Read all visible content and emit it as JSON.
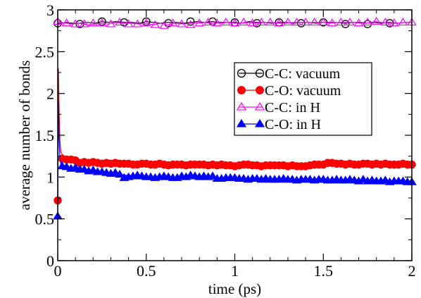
{
  "chart_data": {
    "type": "line",
    "title": "",
    "xlabel": "time (ps)",
    "ylabel": "average number of bonds",
    "xlim": [
      0,
      2
    ],
    "ylim": [
      0,
      3
    ],
    "xticks": [
      0,
      0.5,
      1,
      1.5,
      2
    ],
    "xtick_labels": [
      "0",
      "0.5",
      "1",
      "1.5",
      "2"
    ],
    "yticks": [
      0,
      0.5,
      1,
      1.5,
      2,
      2.5,
      3
    ],
    "ytick_labels": [
      "0",
      "0.5",
      "1",
      "1.5",
      "2",
      "2.5",
      "3"
    ],
    "grid": false,
    "legend_position": "right",
    "series": [
      {
        "name": "C-C: vacuum",
        "color": "#000000",
        "marker": "open-circle",
        "x": [
          0,
          0.02,
          0.05,
          0.08,
          0.12,
          0.17,
          0.21,
          0.25,
          0.29,
          0.33,
          0.37,
          0.42,
          0.46,
          0.5,
          0.54,
          0.58,
          0.62,
          0.67,
          0.71,
          0.75,
          0.79,
          0.83,
          0.87,
          0.92,
          0.96,
          1.0,
          1.04,
          1.08,
          1.12,
          1.17,
          1.21,
          1.25,
          1.29,
          1.33,
          1.37,
          1.42,
          1.46,
          1.5,
          1.54,
          1.58,
          1.62,
          1.67,
          1.71,
          1.75,
          1.79,
          1.83,
          1.87,
          1.92,
          1.96,
          2.0
        ],
        "y": [
          2.84,
          2.84,
          2.85,
          2.84,
          2.84,
          2.85,
          2.84,
          2.86,
          2.85,
          2.86,
          2.85,
          2.85,
          2.84,
          2.86,
          2.85,
          2.84,
          2.85,
          2.85,
          2.84,
          2.85,
          2.86,
          2.85,
          2.86,
          2.85,
          2.85,
          2.85,
          2.84,
          2.86,
          2.85,
          2.85,
          2.84,
          2.85,
          2.85,
          2.84,
          2.85,
          2.85,
          2.84,
          2.85,
          2.85,
          2.85,
          2.84,
          2.85,
          2.85,
          2.84,
          2.85,
          2.84,
          2.85,
          2.84,
          2.85,
          2.85
        ],
        "marker_x": [
          0.0,
          0.125,
          0.25,
          0.375,
          0.5,
          0.625,
          0.75,
          0.875,
          1.0,
          1.125,
          1.25,
          1.375,
          1.5,
          1.625,
          1.75,
          1.875
        ],
        "marker_y": [
          2.84,
          2.83,
          2.86,
          2.85,
          2.86,
          2.84,
          2.86,
          2.86,
          2.85,
          2.84,
          2.85,
          2.84,
          2.85,
          2.83,
          2.83,
          2.84
        ]
      },
      {
        "name": "C-O: vacuum",
        "color": "#ff0000",
        "marker": "filled-circle",
        "x": [
          0,
          0.004,
          0.008,
          0.012,
          0.018,
          0.025,
          0.035,
          0.05,
          0.07,
          0.1,
          0.15,
          0.2,
          0.25,
          0.3,
          0.35,
          0.4,
          0.45,
          0.5,
          0.55,
          0.6,
          0.65,
          0.7,
          0.75,
          0.8,
          0.85,
          0.9,
          0.95,
          1.0,
          1.05,
          1.1,
          1.15,
          1.2,
          1.25,
          1.3,
          1.35,
          1.4,
          1.45,
          1.5,
          1.55,
          1.6,
          1.65,
          1.7,
          1.75,
          1.8,
          1.85,
          1.9,
          1.95,
          2.0
        ],
        "y": [
          0.72,
          2.3,
          1.8,
          1.45,
          1.3,
          1.27,
          1.24,
          1.22,
          1.2,
          1.2,
          1.18,
          1.19,
          1.16,
          1.17,
          1.17,
          1.16,
          1.15,
          1.15,
          1.16,
          1.16,
          1.15,
          1.15,
          1.15,
          1.16,
          1.15,
          1.14,
          1.14,
          1.15,
          1.14,
          1.15,
          1.14,
          1.14,
          1.14,
          1.15,
          1.14,
          1.14,
          1.13,
          1.16,
          1.15,
          1.14,
          1.16,
          1.15,
          1.16,
          1.15,
          1.16,
          1.15,
          1.15,
          1.15
        ],
        "marker_x": [
          0.0,
          0.025,
          0.05,
          0.075,
          0.1,
          0.125,
          0.15,
          0.175,
          0.2,
          0.225,
          0.25,
          0.275,
          0.3,
          0.325,
          0.35,
          0.375,
          0.4,
          0.425,
          0.45,
          0.475,
          0.5,
          0.525,
          0.55,
          0.575,
          0.6,
          0.625,
          0.65,
          0.675,
          0.7,
          0.725,
          0.75,
          0.775,
          0.8,
          0.825,
          0.85,
          0.875,
          0.9,
          0.925,
          0.95,
          0.975,
          1.0,
          1.025,
          1.05,
          1.075,
          1.1,
          1.125,
          1.15,
          1.175,
          1.2,
          1.225,
          1.25,
          1.275,
          1.3,
          1.325,
          1.35,
          1.375,
          1.4,
          1.425,
          1.45,
          1.475,
          1.5,
          1.525,
          1.55,
          1.575,
          1.6,
          1.625,
          1.65,
          1.675,
          1.7,
          1.725,
          1.75,
          1.775,
          1.8,
          1.825,
          1.85,
          1.875,
          1.9,
          1.925,
          1.95,
          1.975,
          2.0
        ],
        "marker_y": [
          0.72,
          1.22,
          1.21,
          1.21,
          1.2,
          1.17,
          1.18,
          1.17,
          1.18,
          1.17,
          1.16,
          1.17,
          1.16,
          1.17,
          1.16,
          1.16,
          1.16,
          1.15,
          1.15,
          1.16,
          1.16,
          1.15,
          1.15,
          1.16,
          1.15,
          1.14,
          1.15,
          1.15,
          1.15,
          1.14,
          1.15,
          1.15,
          1.15,
          1.15,
          1.14,
          1.15,
          1.14,
          1.15,
          1.14,
          1.14,
          1.13,
          1.14,
          1.15,
          1.15,
          1.14,
          1.14,
          1.13,
          1.14,
          1.14,
          1.14,
          1.14,
          1.14,
          1.13,
          1.14,
          1.13,
          1.13,
          1.13,
          1.14,
          1.15,
          1.15,
          1.15,
          1.17,
          1.17,
          1.16,
          1.16,
          1.15,
          1.16,
          1.15,
          1.15,
          1.16,
          1.16,
          1.15,
          1.16,
          1.15,
          1.16,
          1.15,
          1.15,
          1.15,
          1.16,
          1.15,
          1.15
        ]
      },
      {
        "name": "C-C: in H",
        "color": "#ff00ff",
        "marker": "open-triangle",
        "x": [
          0,
          0.02,
          0.05,
          0.08,
          0.12,
          0.17,
          0.21,
          0.25,
          0.29,
          0.33,
          0.37,
          0.42,
          0.46,
          0.5,
          0.54,
          0.58,
          0.62,
          0.67,
          0.71,
          0.75,
          0.79,
          0.83,
          0.87,
          0.92,
          0.96,
          1.0,
          1.04,
          1.08,
          1.12,
          1.17,
          1.21,
          1.25,
          1.29,
          1.33,
          1.37,
          1.42,
          1.46,
          1.5,
          1.54,
          1.58,
          1.62,
          1.67,
          1.71,
          1.75,
          1.79,
          1.83,
          1.87,
          1.92,
          1.96,
          2.0
        ],
        "y": [
          2.86,
          2.85,
          2.84,
          2.83,
          2.84,
          2.82,
          2.83,
          2.84,
          2.83,
          2.85,
          2.84,
          2.84,
          2.83,
          2.84,
          2.82,
          2.84,
          2.82,
          2.84,
          2.83,
          2.84,
          2.84,
          2.85,
          2.84,
          2.84,
          2.85,
          2.84,
          2.84,
          2.85,
          2.84,
          2.85,
          2.85,
          2.84,
          2.84,
          2.85,
          2.85,
          2.85,
          2.85,
          2.85,
          2.84,
          2.85,
          2.85,
          2.85,
          2.84,
          2.84,
          2.86,
          2.85,
          2.84,
          2.84,
          2.85,
          2.85
        ],
        "marker_x": [
          0.0,
          0.05,
          0.1,
          0.15,
          0.2,
          0.25,
          0.3,
          0.35,
          0.4,
          0.45,
          0.5,
          0.55,
          0.6,
          0.65,
          0.7,
          0.75,
          0.8,
          0.85,
          0.9,
          0.95,
          1.0,
          1.05,
          1.1,
          1.15,
          1.2,
          1.25,
          1.3,
          1.35,
          1.4,
          1.45,
          1.5,
          1.55,
          1.6,
          1.65,
          1.7,
          1.75,
          1.8,
          1.85,
          1.9,
          1.95,
          2.0
        ],
        "marker_y": [
          2.86,
          2.84,
          2.83,
          2.83,
          2.84,
          2.84,
          2.83,
          2.85,
          2.83,
          2.83,
          2.84,
          2.82,
          2.81,
          2.84,
          2.83,
          2.82,
          2.84,
          2.85,
          2.84,
          2.85,
          2.84,
          2.85,
          2.84,
          2.85,
          2.85,
          2.84,
          2.85,
          2.85,
          2.85,
          2.85,
          2.85,
          2.84,
          2.85,
          2.85,
          2.84,
          2.85,
          2.86,
          2.85,
          2.84,
          2.85,
          2.85
        ]
      },
      {
        "name": "C-O: in H",
        "color": "#0000ff",
        "marker": "filled-triangle",
        "x": [
          0,
          0.004,
          0.008,
          0.012,
          0.018,
          0.025,
          0.035,
          0.05,
          0.07,
          0.1,
          0.15,
          0.2,
          0.25,
          0.3,
          0.35,
          0.4,
          0.45,
          0.5,
          0.55,
          0.6,
          0.65,
          0.7,
          0.75,
          0.8,
          0.85,
          0.9,
          0.95,
          1.0,
          1.05,
          1.1,
          1.15,
          1.2,
          1.25,
          1.3,
          1.35,
          1.4,
          1.45,
          1.5,
          1.55,
          1.6,
          1.65,
          1.7,
          1.75,
          1.8,
          1.85,
          1.9,
          1.95,
          2.0
        ],
        "y": [
          0.53,
          1.9,
          1.45,
          1.25,
          1.15,
          1.1,
          1.09,
          1.11,
          1.09,
          1.1,
          1.08,
          1.07,
          1.06,
          1.04,
          1.03,
          1.02,
          1.01,
          1.01,
          1.0,
          1.0,
          0.99,
          0.99,
          1.0,
          0.99,
          0.99,
          0.98,
          0.98,
          0.97,
          0.98,
          0.97,
          0.97,
          0.97,
          0.97,
          0.96,
          0.96,
          0.97,
          0.96,
          0.96,
          0.96,
          0.96,
          0.95,
          0.95,
          0.95,
          0.95,
          0.95,
          0.95,
          0.94,
          0.94
        ],
        "marker_x": [
          0.0,
          0.025,
          0.05,
          0.075,
          0.1,
          0.125,
          0.15,
          0.175,
          0.2,
          0.225,
          0.25,
          0.275,
          0.3,
          0.325,
          0.35,
          0.375,
          0.4,
          0.425,
          0.45,
          0.475,
          0.5,
          0.525,
          0.55,
          0.575,
          0.6,
          0.625,
          0.65,
          0.675,
          0.7,
          0.725,
          0.75,
          0.775,
          0.8,
          0.825,
          0.85,
          0.875,
          0.9,
          0.925,
          0.95,
          0.975,
          1.0,
          1.025,
          1.05,
          1.075,
          1.1,
          1.125,
          1.15,
          1.175,
          1.2,
          1.225,
          1.25,
          1.275,
          1.3,
          1.325,
          1.35,
          1.375,
          1.4,
          1.425,
          1.45,
          1.475,
          1.5,
          1.525,
          1.55,
          1.575,
          1.6,
          1.625,
          1.65,
          1.675,
          1.7,
          1.725,
          1.75,
          1.775,
          1.8,
          1.825,
          1.85,
          1.875,
          1.9,
          1.925,
          1.95,
          1.975,
          2.0
        ],
        "marker_y": [
          0.53,
          1.13,
          1.12,
          1.1,
          1.11,
          1.09,
          1.09,
          1.07,
          1.08,
          1.06,
          1.06,
          1.05,
          1.04,
          1.05,
          1.03,
          0.99,
          1.0,
          1.01,
          1.02,
          1.01,
          1.0,
          1.0,
          0.99,
          1.0,
          1.01,
          1.0,
          0.99,
          0.99,
          1.01,
          1.0,
          1.02,
          1.01,
          1.0,
          1.01,
          1.0,
          1.01,
          0.98,
          0.98,
          0.99,
          0.99,
          0.99,
          0.98,
          0.98,
          0.97,
          0.98,
          0.98,
          0.97,
          0.98,
          0.97,
          0.97,
          0.97,
          0.98,
          0.97,
          0.97,
          0.96,
          0.97,
          0.97,
          0.97,
          0.96,
          0.97,
          0.97,
          0.96,
          0.96,
          0.97,
          0.96,
          0.96,
          0.97,
          0.96,
          0.95,
          0.97,
          0.95,
          0.96,
          0.95,
          0.95,
          0.96,
          0.94,
          0.95,
          0.95,
          0.95,
          0.94,
          0.94
        ]
      }
    ]
  }
}
